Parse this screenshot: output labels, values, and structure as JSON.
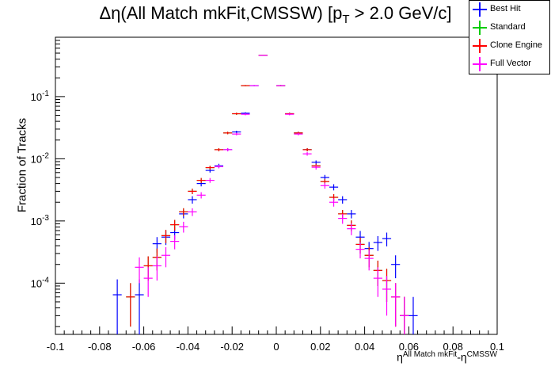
{
  "chart_data": {
    "type": "scatter",
    "title_main": "Δη(All Match mkFit,CMSSW) [p",
    "title_sub": "T",
    "title_tail": " > 2.0 GeV/c]",
    "ylabel": "Fraction of Tracks",
    "xlabel_base": "η",
    "xlabel_sup1": "All Match mkFit",
    "xlabel_mid": "-η",
    "xlabel_sup2": "CMSSW",
    "xlim": [
      -0.1,
      0.1
    ],
    "ylim": [
      1.5e-05,
      0.9
    ],
    "yscale": "log",
    "xticks": [
      -0.1,
      -0.08,
      -0.06,
      -0.04,
      -0.02,
      0,
      0.02,
      0.04,
      0.06,
      0.08,
      0.1
    ],
    "xticklabels": [
      "-0.1",
      "-0.08",
      "-0.06",
      "-0.04",
      "-0.02",
      "0",
      "0.02",
      "0.04",
      "0.06",
      "0.08",
      "0.1"
    ],
    "yticks": [
      0.0001,
      0.001,
      0.01,
      0.1
    ],
    "ytick_base": [
      "10",
      "10",
      "10",
      "10"
    ],
    "ytick_exp": [
      "-4",
      "-3",
      "-2",
      "-1"
    ],
    "bin_half_width": 0.002,
    "series": [
      {
        "name": "Best Hit",
        "color": "#0000ff",
        "points": [
          [
            -0.072,
            6.5e-05,
            5e-05
          ],
          [
            -0.062,
            6.5e-05,
            5e-05
          ],
          [
            -0.054,
            0.00043,
            0.00012
          ],
          [
            -0.05,
            0.00055,
            0.00014
          ],
          [
            -0.046,
            0.00065,
            0.00015
          ],
          [
            -0.042,
            0.0013,
            0.0002
          ],
          [
            -0.038,
            0.0022,
            0.0003
          ],
          [
            -0.034,
            0.004,
            0.0004
          ],
          [
            -0.03,
            0.0065,
            0.0005
          ],
          [
            -0.026,
            0.0077,
            0.0006
          ],
          [
            -0.022,
            0.014,
            0.0008
          ],
          [
            -0.018,
            0.027,
            0.0012
          ],
          [
            -0.014,
            0.054,
            0.002
          ],
          [
            -0.01,
            0.15,
            0.003
          ],
          [
            -0.006,
            0.46,
            0.005
          ],
          [
            0.002,
            0.15,
            0.003
          ],
          [
            0.006,
            0.053,
            0.002
          ],
          [
            0.01,
            0.026,
            0.0012
          ],
          [
            0.014,
            0.014,
            0.0008
          ],
          [
            0.018,
            0.0088,
            0.0006
          ],
          [
            0.022,
            0.005,
            0.0005
          ],
          [
            0.026,
            0.0035,
            0.0004
          ],
          [
            0.03,
            0.0022,
            0.0003
          ],
          [
            0.034,
            0.0013,
            0.0002
          ],
          [
            0.038,
            0.00055,
            0.00014
          ],
          [
            0.042,
            0.00036,
            0.0001
          ],
          [
            0.046,
            0.00045,
            0.00012
          ],
          [
            0.05,
            0.00052,
            0.00013
          ],
          [
            0.054,
            0.0002,
            8e-05
          ],
          [
            0.058,
            3e-05,
            3e-05
          ],
          [
            0.062,
            3e-05,
            3e-05
          ]
        ]
      },
      {
        "name": "Standard",
        "color": "#00cc00",
        "points": [
          [
            -0.066,
            6e-05,
            4e-05
          ],
          [
            -0.058,
            0.00019,
            8e-05
          ],
          [
            -0.054,
            0.00026,
            0.0001
          ],
          [
            -0.05,
            0.00058,
            0.00014
          ],
          [
            -0.046,
            0.00087,
            0.00017
          ],
          [
            -0.042,
            0.0014,
            0.0002
          ],
          [
            -0.038,
            0.003,
            0.0003
          ],
          [
            -0.034,
            0.0045,
            0.0004
          ],
          [
            -0.03,
            0.0072,
            0.0005
          ],
          [
            -0.026,
            0.014,
            0.0008
          ],
          [
            -0.022,
            0.026,
            0.0012
          ],
          [
            -0.018,
            0.053,
            0.002
          ],
          [
            -0.014,
            0.15,
            0.003
          ],
          [
            -0.006,
            0.46,
            0.005
          ],
          [
            0.002,
            0.15,
            0.003
          ],
          [
            0.006,
            0.053,
            0.002
          ],
          [
            0.01,
            0.026,
            0.0012
          ],
          [
            0.014,
            0.014,
            0.0008
          ],
          [
            0.018,
            0.0077,
            0.0006
          ],
          [
            0.022,
            0.0043,
            0.0004
          ],
          [
            0.026,
            0.0024,
            0.0003
          ],
          [
            0.03,
            0.0013,
            0.0002
          ],
          [
            0.034,
            0.00085,
            0.00017
          ],
          [
            0.038,
            0.00042,
            0.00012
          ],
          [
            0.042,
            0.00028,
            0.0001
          ],
          [
            0.046,
            0.00016,
            7e-05
          ],
          [
            0.05,
            0.00011,
            6e-05
          ],
          [
            0.054,
            6e-05,
            4e-05
          ],
          [
            0.058,
            3e-05,
            3e-05
          ]
        ]
      },
      {
        "name": "Clone Engine",
        "color": "#ff0000",
        "points": [
          [
            -0.066,
            6e-05,
            4e-05
          ],
          [
            -0.058,
            0.00019,
            8e-05
          ],
          [
            -0.054,
            0.00026,
            0.0001
          ],
          [
            -0.05,
            0.00058,
            0.00014
          ],
          [
            -0.046,
            0.00087,
            0.00017
          ],
          [
            -0.042,
            0.0014,
            0.0002
          ],
          [
            -0.038,
            0.003,
            0.0003
          ],
          [
            -0.034,
            0.0045,
            0.0004
          ],
          [
            -0.03,
            0.0072,
            0.0005
          ],
          [
            -0.026,
            0.014,
            0.0008
          ],
          [
            -0.022,
            0.026,
            0.0012
          ],
          [
            -0.018,
            0.053,
            0.002
          ],
          [
            -0.014,
            0.15,
            0.003
          ],
          [
            -0.006,
            0.46,
            0.005
          ],
          [
            0.002,
            0.15,
            0.003
          ],
          [
            0.006,
            0.053,
            0.002
          ],
          [
            0.01,
            0.026,
            0.0012
          ],
          [
            0.014,
            0.014,
            0.0008
          ],
          [
            0.018,
            0.0077,
            0.0006
          ],
          [
            0.022,
            0.0043,
            0.0004
          ],
          [
            0.026,
            0.0024,
            0.0003
          ],
          [
            0.03,
            0.0013,
            0.0002
          ],
          [
            0.034,
            0.00085,
            0.00017
          ],
          [
            0.038,
            0.00042,
            0.00012
          ],
          [
            0.042,
            0.00028,
            0.0001
          ],
          [
            0.046,
            0.00016,
            7e-05
          ],
          [
            0.05,
            0.00011,
            6e-05
          ],
          [
            0.054,
            6e-05,
            4e-05
          ],
          [
            0.058,
            3e-05,
            3e-05
          ]
        ]
      },
      {
        "name": "Full Vector",
        "color": "#ff00ff",
        "points": [
          [
            -0.062,
            0.00018,
            8e-05
          ],
          [
            -0.058,
            0.00012,
            6e-05
          ],
          [
            -0.054,
            0.00019,
            8e-05
          ],
          [
            -0.05,
            0.00028,
            0.0001
          ],
          [
            -0.046,
            0.00047,
            0.00012
          ],
          [
            -0.042,
            0.00081,
            0.00016
          ],
          [
            -0.038,
            0.0014,
            0.0002
          ],
          [
            -0.034,
            0.0026,
            0.0003
          ],
          [
            -0.03,
            0.0045,
            0.0004
          ],
          [
            -0.026,
            0.0075,
            0.0005
          ],
          [
            -0.022,
            0.014,
            0.0008
          ],
          [
            -0.018,
            0.025,
            0.0012
          ],
          [
            -0.014,
            0.052,
            0.002
          ],
          [
            -0.01,
            0.15,
            0.003
          ],
          [
            -0.006,
            0.46,
            0.005
          ],
          [
            0.002,
            0.15,
            0.003
          ],
          [
            0.006,
            0.052,
            0.002
          ],
          [
            0.01,
            0.025,
            0.0012
          ],
          [
            0.014,
            0.012,
            0.0008
          ],
          [
            0.018,
            0.0073,
            0.0006
          ],
          [
            0.022,
            0.0037,
            0.0004
          ],
          [
            0.026,
            0.002,
            0.0003
          ],
          [
            0.03,
            0.0011,
            0.0002
          ],
          [
            0.034,
            0.00075,
            0.00016
          ],
          [
            0.038,
            0.00035,
            0.0001
          ],
          [
            0.042,
            0.00025,
            9e-05
          ],
          [
            0.046,
            0.00012,
            6e-05
          ],
          [
            0.05,
            8e-05,
            5e-05
          ],
          [
            0.054,
            6e-05,
            4e-05
          ],
          [
            0.058,
            3e-05,
            3e-05
          ]
        ]
      }
    ],
    "legend_position": "top-right"
  }
}
